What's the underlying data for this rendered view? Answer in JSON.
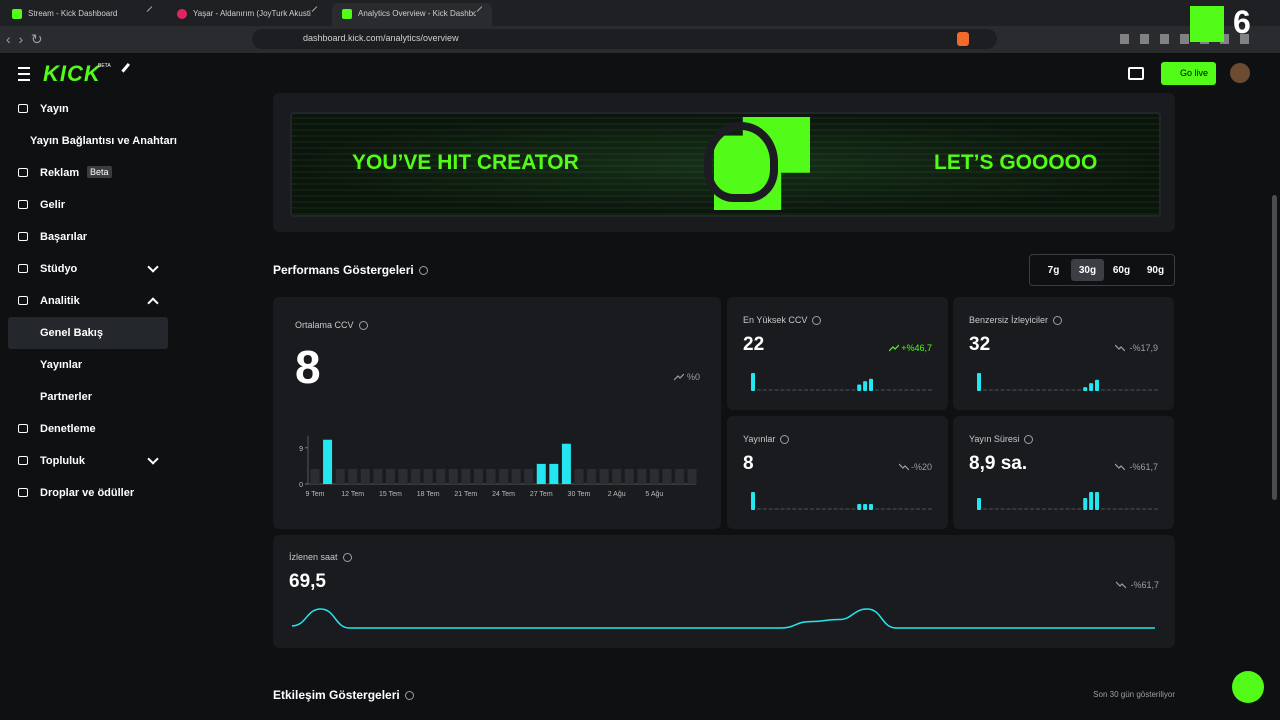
{
  "browser": {
    "tabs": [
      "Stream - Kick Dashboard",
      "Yaşar - Aldanırım (JoyTurk Akustik",
      "Analytics Overview - Kick Dashbo"
    ],
    "active_tab": 2,
    "url": "dashboard.kick.com/analytics/overview",
    "overlay": "6"
  },
  "header": {
    "logo": "KICK",
    "logo_badge": "BETA",
    "go_live": "Go live"
  },
  "sidebar": {
    "items": [
      {
        "label": "Yayın",
        "children": [
          {
            "label": "Yayın Bağlantısı ve Anahtarı"
          }
        ]
      },
      {
        "label": "Reklam",
        "badge": "Beta"
      },
      {
        "label": "Gelir"
      },
      {
        "label": "Başarılar"
      },
      {
        "label": "Stüdyo",
        "expanded": false
      },
      {
        "label": "Analitik",
        "expanded": true,
        "children": [
          {
            "label": "Genel Bakış",
            "active": true
          },
          {
            "label": "Yayınlar"
          },
          {
            "label": "Partnerler"
          }
        ]
      },
      {
        "label": "Denetleme"
      },
      {
        "label": "Topluluk",
        "expanded": false
      },
      {
        "label": "Droplar ve ödüller"
      }
    ]
  },
  "banner": {
    "left": "YOU’VE HIT CREATOR",
    "right": "LET’S GOOOOO"
  },
  "performance": {
    "title": "Performans Göstergeleri",
    "ranges": [
      "7g",
      "30g",
      "60g",
      "90g"
    ],
    "selected_range": 1,
    "avg_ccv": {
      "label": "Ortalama CCV",
      "value": 8,
      "trend": "%0",
      "chart": {
        "categories": [
          "9 Tem",
          null,
          null,
          "12 Tem",
          null,
          null,
          "15 Tem",
          null,
          null,
          "18 Tem",
          null,
          null,
          "21 Tem",
          null,
          null,
          "24 Tem",
          null,
          null,
          "27 Tem",
          null,
          null,
          "30 Tem",
          null,
          null,
          "2 Ağu",
          null,
          null,
          "5 Ağu",
          null,
          null,
          null
        ],
        "values": [
          0,
          11,
          0,
          0,
          0,
          0,
          0,
          0,
          0,
          0,
          0,
          0,
          0,
          0,
          0,
          0,
          0,
          0,
          5,
          5,
          10,
          0,
          0,
          0,
          0,
          0,
          0,
          0,
          0,
          0,
          0
        ],
        "ylim": [
          0,
          12
        ],
        "yticks": [
          0,
          9
        ],
        "color": "#24e6f0"
      }
    },
    "cards": [
      {
        "label": "En Yüksek CCV",
        "value": 22,
        "trend": "+%46,7",
        "trend_up": true,
        "values": [
          22,
          0,
          0,
          0,
          0,
          0,
          0,
          0,
          0,
          0,
          0,
          0,
          0,
          0,
          0,
          0,
          0,
          0,
          8,
          12,
          15,
          0,
          0,
          0,
          0,
          0,
          0,
          0,
          0,
          0,
          0
        ]
      },
      {
        "label": "Benzersiz İzleyiciler",
        "value": 32,
        "trend": "-%17,9",
        "values": [
          32,
          0,
          0,
          0,
          0,
          0,
          0,
          0,
          0,
          0,
          0,
          0,
          0,
          0,
          0,
          0,
          0,
          0,
          7,
          14,
          20,
          0,
          0,
          0,
          0,
          0,
          0,
          0,
          0,
          0,
          0
        ]
      },
      {
        "label": "Yayınlar",
        "value": 8,
        "trend": "-%20",
        "values": [
          3,
          0,
          0,
          0,
          0,
          0,
          0,
          0,
          0,
          0,
          0,
          0,
          0,
          0,
          0,
          0,
          0,
          0,
          1,
          1,
          1,
          0,
          0,
          0,
          0,
          0,
          0,
          0,
          0,
          0,
          0
        ]
      },
      {
        "label": "Yayın Süresi",
        "value": "8,9 sa.",
        "trend": "-%61,7",
        "values": [
          3,
          0,
          0,
          0,
          0,
          0,
          0,
          0,
          0,
          0,
          0,
          0,
          0,
          0,
          0,
          0,
          0,
          0,
          3,
          4.5,
          4.5,
          0,
          0,
          0,
          0,
          0,
          0,
          0,
          0,
          0,
          0
        ]
      }
    ],
    "watch_hours": {
      "label": "İzlenen saat",
      "value": "69,5",
      "trend": "-%61,7",
      "values": [
        1,
        9,
        0,
        0,
        0,
        0,
        0,
        0,
        0,
        0,
        0,
        0,
        0,
        0,
        0,
        0,
        0,
        0,
        3,
        4,
        9,
        0,
        0,
        0,
        0,
        0,
        0,
        0,
        0,
        0,
        0
      ]
    }
  },
  "engagement": {
    "title": "Etkileşim Göstergeleri",
    "note": "Son 30 gün gösteriliyor"
  }
}
